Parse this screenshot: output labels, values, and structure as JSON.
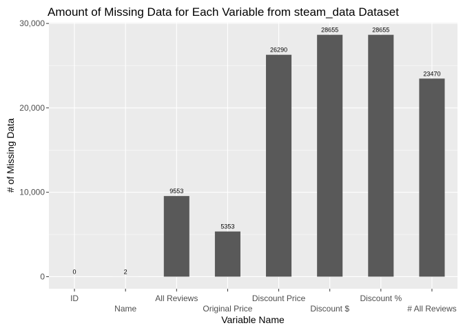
{
  "chart_data": {
    "type": "bar",
    "title": "Amount of Missing Data for Each Variable from steam_data Dataset",
    "xlabel": "Variable Name",
    "ylabel": "# of Missing Data",
    "categories": [
      "ID",
      "Name",
      "All Reviews",
      "Original Price",
      "Discount Price",
      "Discount $",
      "Discount %",
      "# All Reviews"
    ],
    "values": [
      0,
      2,
      9553,
      5353,
      26290,
      28655,
      28655,
      23470
    ],
    "data_labels": [
      "0",
      "2",
      "9553",
      "5353",
      "26290",
      "28655",
      "28655",
      "23470"
    ],
    "ylim": [
      -1433,
      30092
    ],
    "yticks": [
      0,
      10000,
      20000,
      30000
    ],
    "ytick_labels": [
      "0",
      "10,000",
      "20,000",
      "30,000"
    ],
    "grid": true,
    "colors": {
      "panel_background": "#ebebeb",
      "grid_major": "#ffffff",
      "bar": "#595959"
    }
  }
}
